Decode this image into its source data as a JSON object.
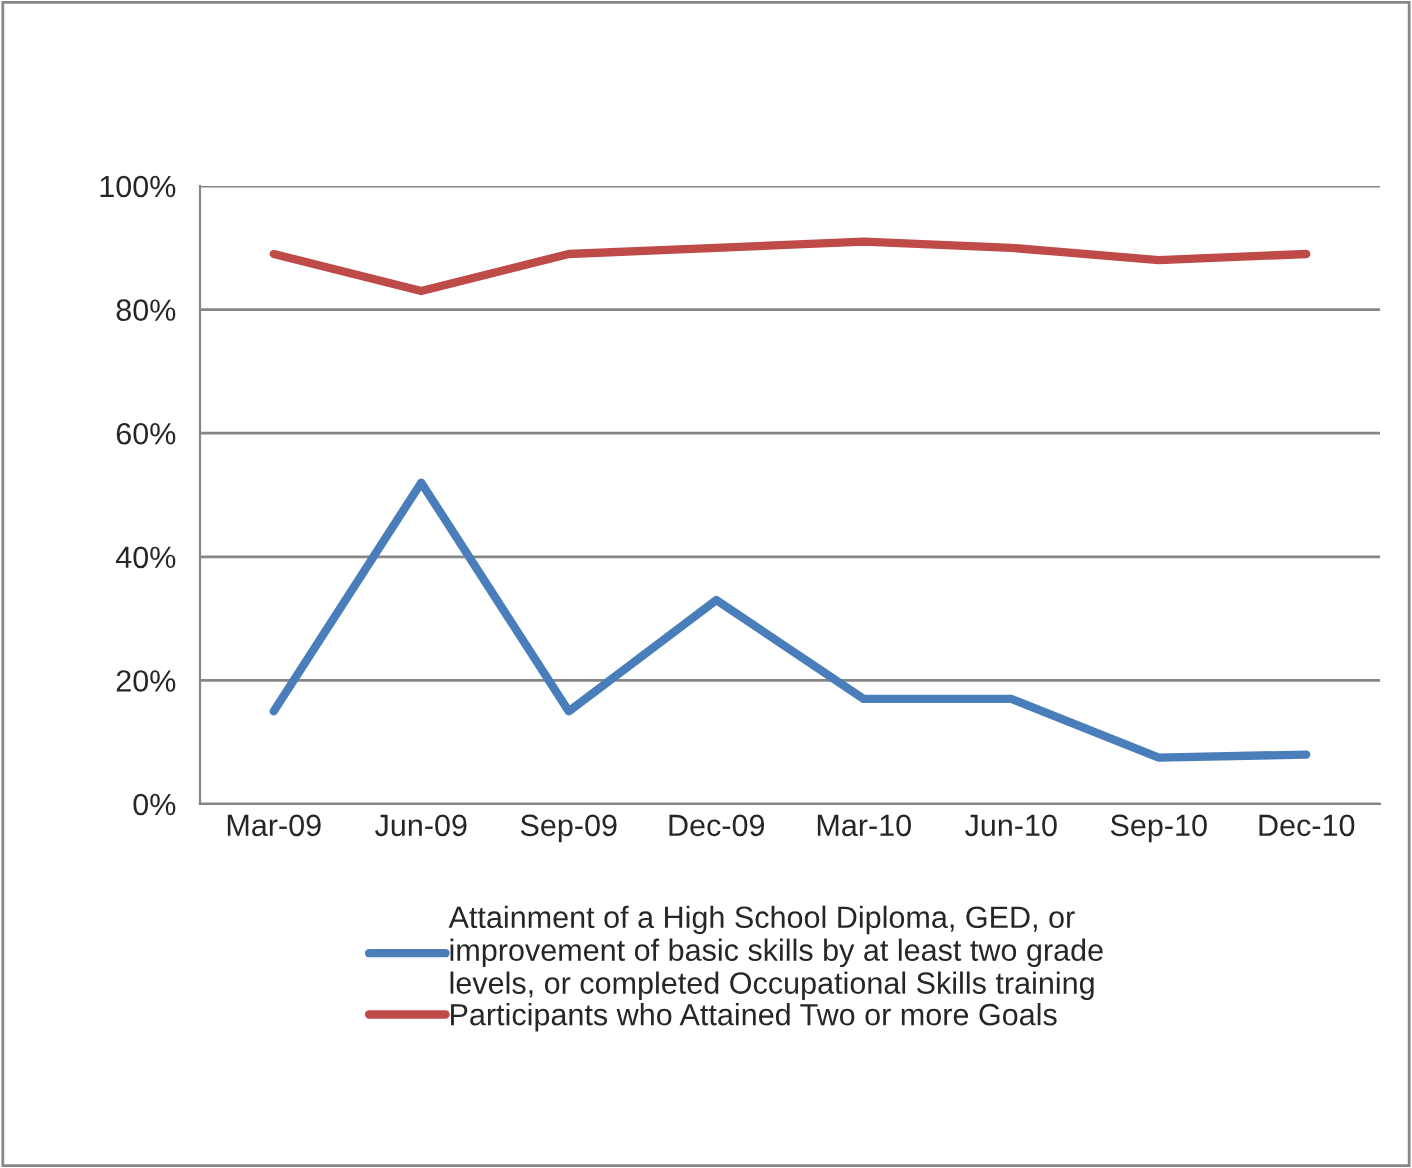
{
  "chart_data": {
    "type": "line",
    "categories": [
      "Mar-09",
      "Jun-09",
      "Sep-09",
      "Dec-09",
      "Mar-10",
      "Jun-10",
      "Sep-10",
      "Dec-10"
    ],
    "series": [
      {
        "name": "Attainment of a High School Diploma, GED, or\nimprovement of basic skills by at least two grade\nlevels, or completed Occupational Skills training",
        "color": "#4a7ebb",
        "values": [
          15,
          52,
          15,
          33,
          17,
          17,
          7.5,
          8
        ]
      },
      {
        "name": "Participants who Attained Two or more Goals",
        "color": "#be4b48",
        "values": [
          89,
          83,
          89,
          90,
          91,
          90,
          88,
          89
        ]
      }
    ],
    "ylim": [
      0,
      100
    ],
    "yticks": [
      {
        "value": 0,
        "label": "0%"
      },
      {
        "value": 20,
        "label": "20%"
      },
      {
        "value": 40,
        "label": "40%"
      },
      {
        "value": 60,
        "label": "60%"
      },
      {
        "value": 80,
        "label": "80%"
      },
      {
        "value": 100,
        "label": "100%"
      }
    ],
    "grid": "y",
    "legend": "bottom",
    "marker": "none",
    "line_style": "solid"
  }
}
